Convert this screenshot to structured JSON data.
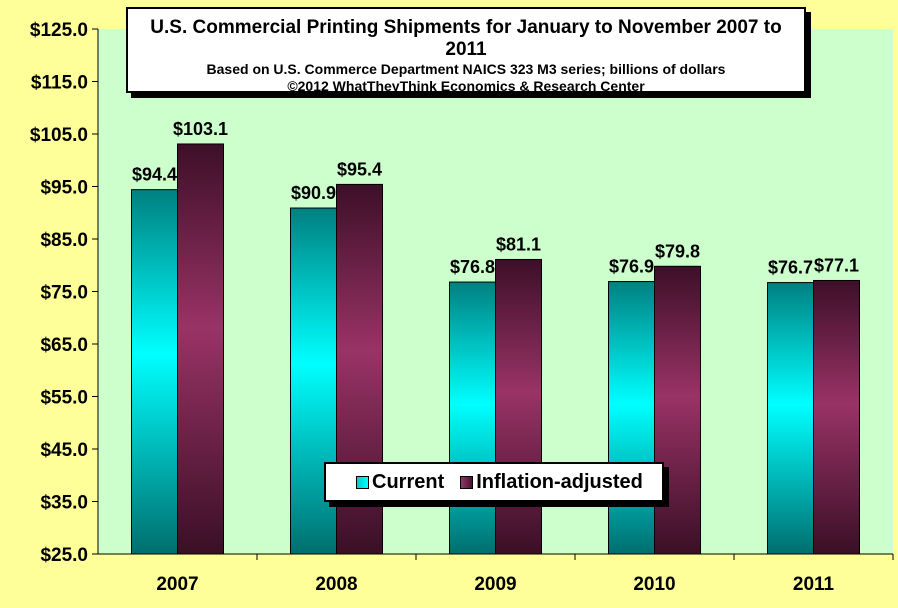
{
  "chart_data": {
    "type": "bar",
    "title": "U.S. Commercial Printing Shipments for January to November 2007 to 2011",
    "subtitle": "Based on U.S. Commerce Department NAICS 323 M3 series; billions of dollars",
    "credit": "©2012 WhatTheyThink Economics & Research Center",
    "categories": [
      "2007",
      "2008",
      "2009",
      "2010",
      "2011"
    ],
    "series": [
      {
        "name": "Current",
        "values": [
          94.4,
          90.9,
          76.8,
          76.9,
          76.7
        ],
        "labels": [
          "$94.4",
          "$90.9",
          "$76.8",
          "$76.9",
          "$76.7"
        ]
      },
      {
        "name": "Inflation-adjusted",
        "values": [
          103.1,
          95.4,
          81.1,
          79.8,
          77.1
        ],
        "labels": [
          "$103.1",
          "$95.4",
          "$81.1",
          "$79.8",
          "$77.1"
        ]
      }
    ],
    "ylim": [
      25,
      125
    ],
    "yticks": [
      "$25.0",
      "$35.0",
      "$45.0",
      "$55.0",
      "$65.0",
      "$75.0",
      "$85.0",
      "$95.0",
      "$105.0",
      "$115.0",
      "$125.0"
    ],
    "xlabel": "",
    "ylabel": "",
    "legend": "bottom-center inside plot",
    "colors": {
      "current_light": "#00ffff",
      "current_dark": "#007b7b",
      "infl_light": "#993366",
      "infl_dark": "#3a0f26",
      "plot_bg": "#ccffcc",
      "page_bg": "#ffff99"
    }
  }
}
